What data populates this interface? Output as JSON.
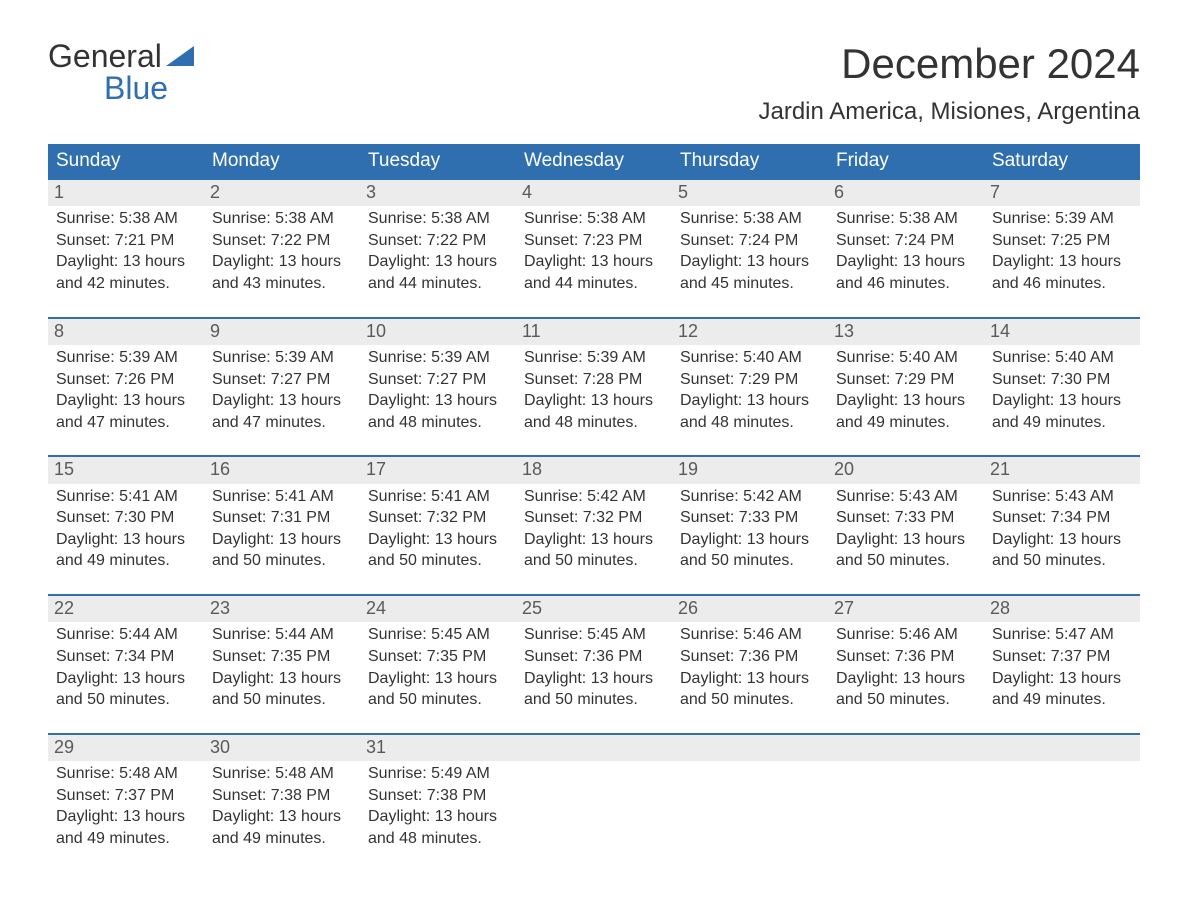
{
  "brand": {
    "word1": "General",
    "word2": "Blue",
    "accent_color": "#2f6fb0"
  },
  "title": "December 2024",
  "location": "Jardin America, Misiones, Argentina",
  "colors": {
    "header_bg": "#2f6fb0",
    "header_text": "#ffffff",
    "daynum_bg": "#ececec",
    "daynum_text": "#5a5a5a",
    "body_text": "#333333",
    "week_border": "#2f6fb0",
    "page_bg": "#ffffff"
  },
  "layout": {
    "columns": 7,
    "rows": 5,
    "font_family": "Arial"
  },
  "day_headers": [
    "Sunday",
    "Monday",
    "Tuesday",
    "Wednesday",
    "Thursday",
    "Friday",
    "Saturday"
  ],
  "labels": {
    "sunrise": "Sunrise:",
    "sunset": "Sunset:",
    "daylight": "Daylight:"
  },
  "weeks": [
    [
      {
        "day": "1",
        "sunrise": "5:38 AM",
        "sunset": "7:21 PM",
        "dl1": "13 hours",
        "dl2": "and 42 minutes."
      },
      {
        "day": "2",
        "sunrise": "5:38 AM",
        "sunset": "7:22 PM",
        "dl1": "13 hours",
        "dl2": "and 43 minutes."
      },
      {
        "day": "3",
        "sunrise": "5:38 AM",
        "sunset": "7:22 PM",
        "dl1": "13 hours",
        "dl2": "and 44 minutes."
      },
      {
        "day": "4",
        "sunrise": "5:38 AM",
        "sunset": "7:23 PM",
        "dl1": "13 hours",
        "dl2": "and 44 minutes."
      },
      {
        "day": "5",
        "sunrise": "5:38 AM",
        "sunset": "7:24 PM",
        "dl1": "13 hours",
        "dl2": "and 45 minutes."
      },
      {
        "day": "6",
        "sunrise": "5:38 AM",
        "sunset": "7:24 PM",
        "dl1": "13 hours",
        "dl2": "and 46 minutes."
      },
      {
        "day": "7",
        "sunrise": "5:39 AM",
        "sunset": "7:25 PM",
        "dl1": "13 hours",
        "dl2": "and 46 minutes."
      }
    ],
    [
      {
        "day": "8",
        "sunrise": "5:39 AM",
        "sunset": "7:26 PM",
        "dl1": "13 hours",
        "dl2": "and 47 minutes."
      },
      {
        "day": "9",
        "sunrise": "5:39 AM",
        "sunset": "7:27 PM",
        "dl1": "13 hours",
        "dl2": "and 47 minutes."
      },
      {
        "day": "10",
        "sunrise": "5:39 AM",
        "sunset": "7:27 PM",
        "dl1": "13 hours",
        "dl2": "and 48 minutes."
      },
      {
        "day": "11",
        "sunrise": "5:39 AM",
        "sunset": "7:28 PM",
        "dl1": "13 hours",
        "dl2": "and 48 minutes."
      },
      {
        "day": "12",
        "sunrise": "5:40 AM",
        "sunset": "7:29 PM",
        "dl1": "13 hours",
        "dl2": "and 48 minutes."
      },
      {
        "day": "13",
        "sunrise": "5:40 AM",
        "sunset": "7:29 PM",
        "dl1": "13 hours",
        "dl2": "and 49 minutes."
      },
      {
        "day": "14",
        "sunrise": "5:40 AM",
        "sunset": "7:30 PM",
        "dl1": "13 hours",
        "dl2": "and 49 minutes."
      }
    ],
    [
      {
        "day": "15",
        "sunrise": "5:41 AM",
        "sunset": "7:30 PM",
        "dl1": "13 hours",
        "dl2": "and 49 minutes."
      },
      {
        "day": "16",
        "sunrise": "5:41 AM",
        "sunset": "7:31 PM",
        "dl1": "13 hours",
        "dl2": "and 50 minutes."
      },
      {
        "day": "17",
        "sunrise": "5:41 AM",
        "sunset": "7:32 PM",
        "dl1": "13 hours",
        "dl2": "and 50 minutes."
      },
      {
        "day": "18",
        "sunrise": "5:42 AM",
        "sunset": "7:32 PM",
        "dl1": "13 hours",
        "dl2": "and 50 minutes."
      },
      {
        "day": "19",
        "sunrise": "5:42 AM",
        "sunset": "7:33 PM",
        "dl1": "13 hours",
        "dl2": "and 50 minutes."
      },
      {
        "day": "20",
        "sunrise": "5:43 AM",
        "sunset": "7:33 PM",
        "dl1": "13 hours",
        "dl2": "and 50 minutes."
      },
      {
        "day": "21",
        "sunrise": "5:43 AM",
        "sunset": "7:34 PM",
        "dl1": "13 hours",
        "dl2": "and 50 minutes."
      }
    ],
    [
      {
        "day": "22",
        "sunrise": "5:44 AM",
        "sunset": "7:34 PM",
        "dl1": "13 hours",
        "dl2": "and 50 minutes."
      },
      {
        "day": "23",
        "sunrise": "5:44 AM",
        "sunset": "7:35 PM",
        "dl1": "13 hours",
        "dl2": "and 50 minutes."
      },
      {
        "day": "24",
        "sunrise": "5:45 AM",
        "sunset": "7:35 PM",
        "dl1": "13 hours",
        "dl2": "and 50 minutes."
      },
      {
        "day": "25",
        "sunrise": "5:45 AM",
        "sunset": "7:36 PM",
        "dl1": "13 hours",
        "dl2": "and 50 minutes."
      },
      {
        "day": "26",
        "sunrise": "5:46 AM",
        "sunset": "7:36 PM",
        "dl1": "13 hours",
        "dl2": "and 50 minutes."
      },
      {
        "day": "27",
        "sunrise": "5:46 AM",
        "sunset": "7:36 PM",
        "dl1": "13 hours",
        "dl2": "and 50 minutes."
      },
      {
        "day": "28",
        "sunrise": "5:47 AM",
        "sunset": "7:37 PM",
        "dl1": "13 hours",
        "dl2": "and 49 minutes."
      }
    ],
    [
      {
        "day": "29",
        "sunrise": "5:48 AM",
        "sunset": "7:37 PM",
        "dl1": "13 hours",
        "dl2": "and 49 minutes."
      },
      {
        "day": "30",
        "sunrise": "5:48 AM",
        "sunset": "7:38 PM",
        "dl1": "13 hours",
        "dl2": "and 49 minutes."
      },
      {
        "day": "31",
        "sunrise": "5:49 AM",
        "sunset": "7:38 PM",
        "dl1": "13 hours",
        "dl2": "and 48 minutes."
      },
      null,
      null,
      null,
      null
    ]
  ]
}
